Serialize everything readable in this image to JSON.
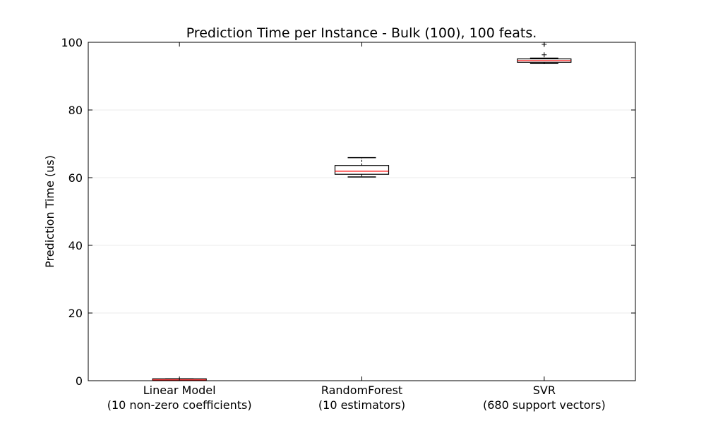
{
  "chart_data": {
    "type": "boxplot",
    "title": "Prediction Time per Instance - Bulk (100), 100 feats.",
    "xlabel": "",
    "ylabel": "Prediction Time (us)",
    "ylim": [
      0,
      100
    ],
    "yticks": [
      0,
      20,
      40,
      60,
      80,
      100
    ],
    "grid": "horizontal",
    "categories": [
      [
        "Linear Model",
        "(10 non-zero coefficients)"
      ],
      [
        "RandomForest",
        "(10 estimators)"
      ],
      [
        "SVR",
        "(680 support vectors)"
      ]
    ],
    "boxes": [
      {
        "whisker_low": 0.1,
        "q1": 0.15,
        "median": 0.25,
        "q3": 0.4,
        "whisker_high": 0.55,
        "outliers": []
      },
      {
        "whisker_low": 60.2,
        "q1": 61.0,
        "median": 61.9,
        "q3": 63.6,
        "whisker_high": 65.9,
        "outliers": []
      },
      {
        "whisker_low": 93.7,
        "q1": 94.1,
        "median": 94.6,
        "q3": 95.1,
        "whisker_high": 95.3,
        "outliers": [
          96.3,
          99.4
        ]
      }
    ],
    "colors": {
      "box": "#000000",
      "median": "#ff0000",
      "grid": "#ebebeb",
      "background": "#ffffff"
    }
  }
}
